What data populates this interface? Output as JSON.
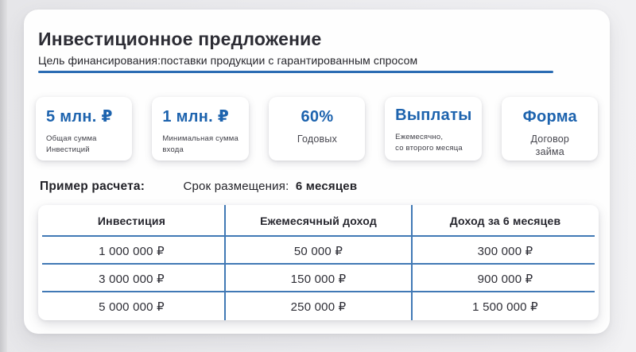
{
  "header": {
    "title": "Инвестиционное предложение",
    "subtitle": "Цель финансирования:поставки продукции с гарантированным спросом"
  },
  "stats": [
    {
      "value": "5 млн. ₽",
      "label": "Общая сумма\nИнвестиций",
      "align": "left"
    },
    {
      "value": "1 млн. ₽",
      "label": "Минимальная сумма\nвхода",
      "align": "left"
    },
    {
      "value": "60%",
      "label": "Годовых",
      "align": "center"
    },
    {
      "value": "Выплаты",
      "label": "Ежемесячно,\nсо второго месяца",
      "align": "left"
    },
    {
      "value": "Форма",
      "label": "Договор\nзайма",
      "align": "center"
    }
  ],
  "example": {
    "label": "Пример расчета:",
    "term_label": "Срок размещения:",
    "term_value": "6 месяцев"
  },
  "table": {
    "headers": [
      "Инвестиция",
      "Ежемесячный доход",
      "Доход за 6 месяцев"
    ],
    "rows": [
      [
        "1 000 000 ₽",
        "50 000 ₽",
        "300 000 ₽"
      ],
      [
        "3 000 000 ₽",
        "150 000 ₽",
        "900 000 ₽"
      ],
      [
        "5 000 000 ₽",
        "250 000 ₽",
        "1 500 000 ₽"
      ]
    ]
  },
  "colors": {
    "accent_blue": "#1d63ae",
    "divider_blue": "#2b6cb3",
    "table_line_blue": "#4179b5"
  }
}
